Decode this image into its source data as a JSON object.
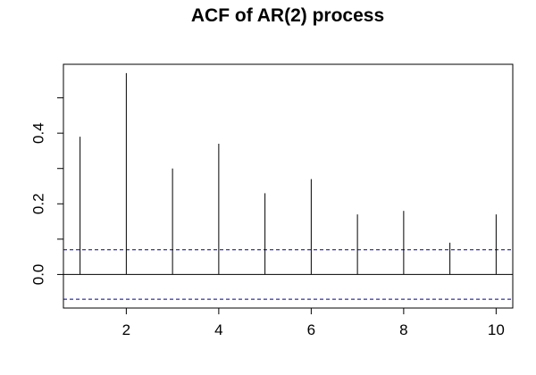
{
  "chart_data": {
    "type": "bar",
    "title": "ACF of AR(2) process",
    "xlabel": "",
    "ylabel": "",
    "x": [
      1,
      2,
      3,
      4,
      5,
      6,
      7,
      8,
      9,
      10
    ],
    "values": [
      0.39,
      0.57,
      0.3,
      0.37,
      0.23,
      0.27,
      0.17,
      0.18,
      0.09,
      0.17
    ],
    "xlim": [
      0.64,
      10.36
    ],
    "ylim": [
      -0.095,
      0.595
    ],
    "x_ticks": [
      2,
      4,
      6,
      8,
      10
    ],
    "x_tick_labels": [
      "2",
      "4",
      "6",
      "8",
      "10"
    ],
    "y_ticks": [
      0.0,
      0.1,
      0.2,
      0.3,
      0.4,
      0.5
    ],
    "y_tick_labels": [
      "0.0",
      "0.2",
      "0.4"
    ],
    "y_tick_labeled_values": [
      0.0,
      0.2,
      0.4
    ],
    "confidence_bounds": [
      0.07,
      -0.07
    ],
    "zero_line": 0,
    "colors": {
      "spike": "#000000",
      "zero_line": "#000000",
      "confidence": "#00008b",
      "frame": "#000000"
    },
    "grid": false,
    "legend": "none"
  }
}
